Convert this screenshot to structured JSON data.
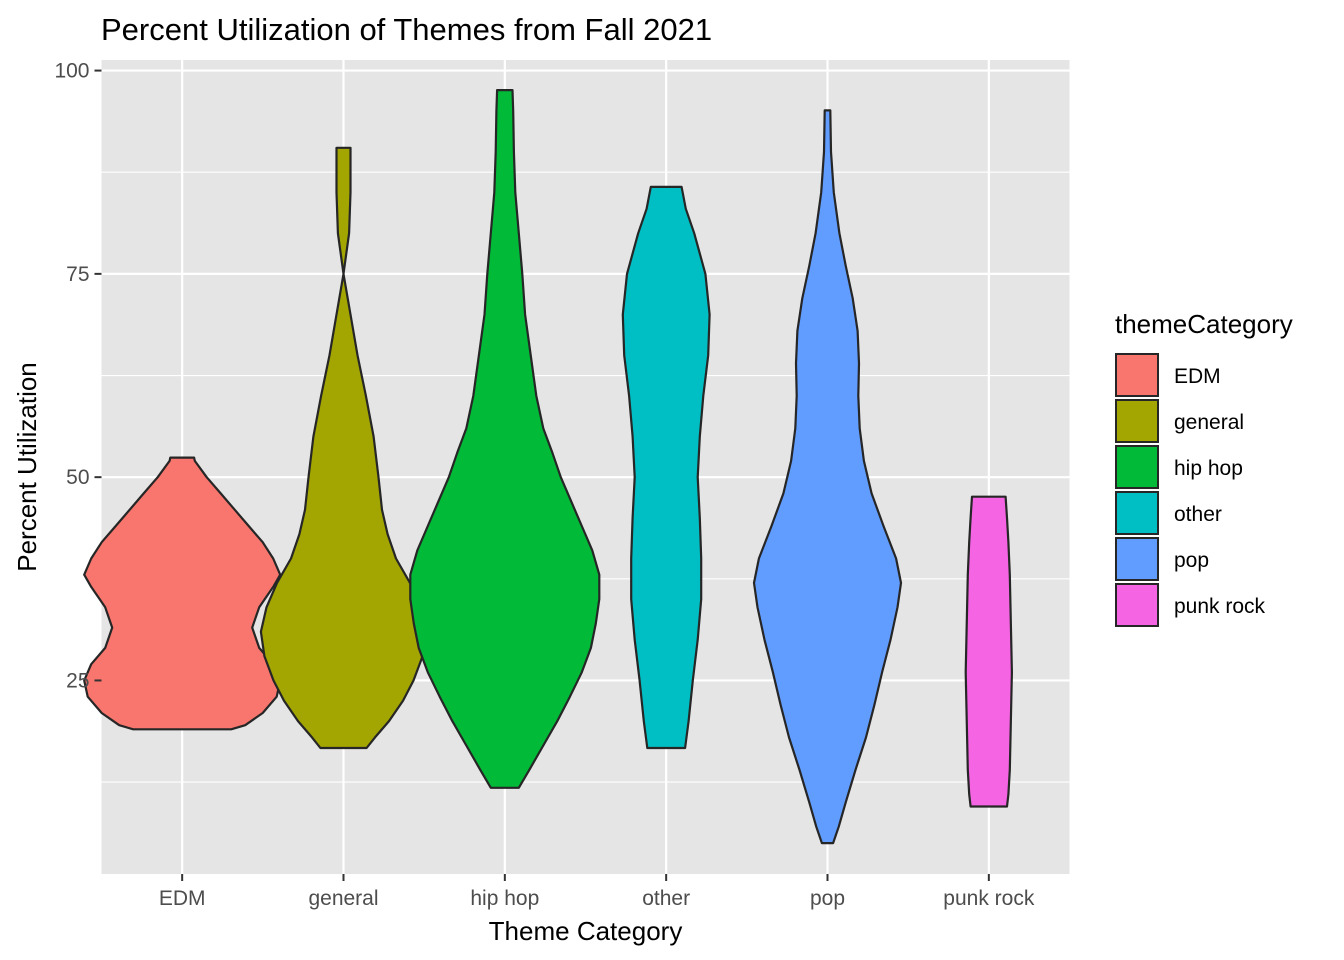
{
  "chart_data": {
    "type": "violin",
    "title": "Percent Utilization of Themes from Fall 2021",
    "xlabel": "Theme Category",
    "ylabel": "Percent Utilization",
    "ylim": [
      1.2,
      101.3
    ],
    "yticks": [
      25,
      50,
      75,
      100
    ],
    "grid": true,
    "background": "#e5e5e5",
    "legend": {
      "title": "themeCategory",
      "position": "right"
    },
    "categories": [
      "EDM",
      "general",
      "hip hop",
      "other",
      "pop",
      "punk rock"
    ],
    "series": [
      {
        "name": "EDM",
        "color": "#f8766d",
        "profile": [
          [
            19.0,
            7.0
          ],
          [
            19.5,
            9.0
          ],
          [
            21.0,
            11.5
          ],
          [
            23.0,
            13.5
          ],
          [
            25.0,
            14.0
          ],
          [
            27.0,
            13.0
          ],
          [
            29.0,
            11.0
          ],
          [
            31.5,
            10.0
          ],
          [
            34.0,
            11.0
          ],
          [
            36.5,
            13.0
          ],
          [
            38.0,
            14.0
          ],
          [
            40.0,
            13.0
          ],
          [
            42.0,
            11.5
          ],
          [
            44.0,
            9.5
          ],
          [
            46.0,
            7.5
          ],
          [
            48.0,
            5.5
          ],
          [
            50.0,
            3.5
          ],
          [
            52.0,
            1.8
          ],
          [
            52.4,
            1.7
          ]
        ]
      },
      {
        "name": "general",
        "color": "#a3a500",
        "profile": [
          [
            16.7,
            3.3
          ],
          [
            18.0,
            4.5
          ],
          [
            20.0,
            6.5
          ],
          [
            22.5,
            8.5
          ],
          [
            25.0,
            10.0
          ],
          [
            28.0,
            11.3
          ],
          [
            31.0,
            11.8
          ],
          [
            34.0,
            11.0
          ],
          [
            37.0,
            9.5
          ],
          [
            40.0,
            7.5
          ],
          [
            43.0,
            6.3
          ],
          [
            46.0,
            5.5
          ],
          [
            50.0,
            5.0
          ],
          [
            55.0,
            4.3
          ],
          [
            60.0,
            3.2
          ],
          [
            65.0,
            2.0
          ],
          [
            70.0,
            1.0
          ],
          [
            75.0,
            0.0
          ],
          [
            80.0,
            -0.8
          ],
          [
            85.0,
            -1.0
          ],
          [
            90.5,
            -1.0
          ]
        ]
      },
      {
        "name": "hip hop",
        "color": "#00ba38",
        "profile": [
          [
            11.8,
            2.0
          ],
          [
            14.0,
            3.5
          ],
          [
            17.0,
            5.5
          ],
          [
            20.0,
            7.5
          ],
          [
            23.0,
            9.3
          ],
          [
            26.0,
            11.0
          ],
          [
            29.0,
            12.3
          ],
          [
            32.0,
            13.0
          ],
          [
            35.0,
            13.5
          ],
          [
            38.0,
            13.5
          ],
          [
            41.0,
            12.5
          ],
          [
            44.0,
            11.0
          ],
          [
            47.0,
            9.5
          ],
          [
            50.0,
            8.0
          ],
          [
            53.0,
            6.8
          ],
          [
            56.0,
            5.5
          ],
          [
            60.0,
            4.5
          ],
          [
            65.0,
            3.7
          ],
          [
            70.0,
            2.9
          ],
          [
            75.0,
            2.5
          ],
          [
            80.0,
            2.0
          ],
          [
            85.0,
            1.5
          ],
          [
            90.0,
            1.3
          ],
          [
            95.0,
            1.2
          ],
          [
            97.6,
            1.1
          ]
        ]
      },
      {
        "name": "other",
        "color": "#00bfc4",
        "profile": [
          [
            16.7,
            2.7
          ],
          [
            20.0,
            3.2
          ],
          [
            25.0,
            3.8
          ],
          [
            30.0,
            4.5
          ],
          [
            35.0,
            5.0
          ],
          [
            40.0,
            5.0
          ],
          [
            45.0,
            4.8
          ],
          [
            50.0,
            4.5
          ],
          [
            55.0,
            4.8
          ],
          [
            60.0,
            5.3
          ],
          [
            65.0,
            6.0
          ],
          [
            70.0,
            6.2
          ],
          [
            75.0,
            5.6
          ],
          [
            80.0,
            4.0
          ],
          [
            83.0,
            2.8
          ],
          [
            85.7,
            2.2
          ]
        ]
      },
      {
        "name": "pop",
        "color": "#619cff",
        "profile": [
          [
            5.0,
            0.8
          ],
          [
            7.0,
            1.6
          ],
          [
            10.0,
            2.6
          ],
          [
            14.0,
            4.0
          ],
          [
            18.0,
            5.5
          ],
          [
            22.0,
            6.7
          ],
          [
            26.0,
            7.8
          ],
          [
            30.0,
            9.0
          ],
          [
            34.0,
            10.0
          ],
          [
            37.0,
            10.5
          ],
          [
            40.0,
            9.8
          ],
          [
            44.0,
            8.0
          ],
          [
            48.0,
            6.3
          ],
          [
            52.0,
            5.2
          ],
          [
            56.0,
            4.6
          ],
          [
            60.0,
            4.4
          ],
          [
            64.0,
            4.5
          ],
          [
            68.0,
            4.3
          ],
          [
            72.0,
            3.6
          ],
          [
            76.0,
            2.6
          ],
          [
            80.0,
            1.7
          ],
          [
            85.0,
            0.9
          ],
          [
            90.0,
            0.5
          ],
          [
            95.1,
            0.4
          ]
        ]
      },
      {
        "name": "punk rock",
        "color": "#f564e3",
        "profile": [
          [
            9.5,
            2.6
          ],
          [
            11.0,
            2.8
          ],
          [
            14.0,
            3.0
          ],
          [
            18.0,
            3.1
          ],
          [
            22.0,
            3.2
          ],
          [
            26.0,
            3.3
          ],
          [
            30.0,
            3.2
          ],
          [
            34.0,
            3.1
          ],
          [
            38.0,
            3.0
          ],
          [
            42.0,
            2.8
          ],
          [
            45.0,
            2.6
          ],
          [
            47.6,
            2.4
          ]
        ]
      }
    ]
  }
}
